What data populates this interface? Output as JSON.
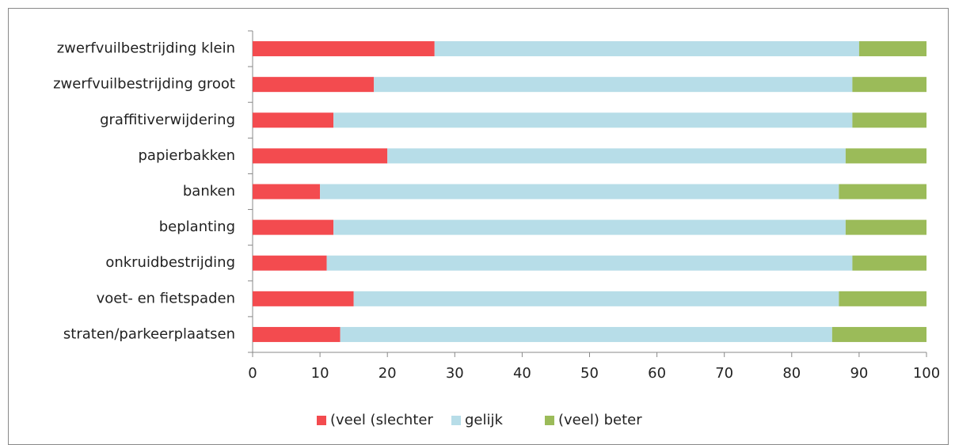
{
  "chart_data": {
    "type": "stacked-barh",
    "categories": [
      "zwerfvuilbestrijding klein",
      "zwerfvuilbestrijding groot",
      "graffitiverwijdering",
      "papierbakken",
      "banken",
      "beplanting",
      "onkruidbestrijding",
      "voet- en fietspaden",
      "straten/parkeerplaatsen"
    ],
    "series": [
      {
        "name": "(veel (slechter",
        "color": "#f34b4f",
        "values": [
          27,
          18,
          12,
          20,
          10,
          12,
          11,
          15,
          13
        ]
      },
      {
        "name": "gelijk",
        "color": "#b7dde8",
        "values": [
          63,
          71,
          77,
          68,
          77,
          76,
          78,
          72,
          73
        ]
      },
      {
        "name": "(veel) beter",
        "color": "#9bbb59",
        "values": [
          10,
          11,
          11,
          12,
          13,
          12,
          11,
          13,
          14
        ]
      }
    ],
    "xlim": [
      0,
      100
    ],
    "xticks": [
      0,
      10,
      20,
      30,
      40,
      50,
      60,
      70,
      80,
      90,
      100
    ],
    "grid": false,
    "legend": "bottom"
  }
}
